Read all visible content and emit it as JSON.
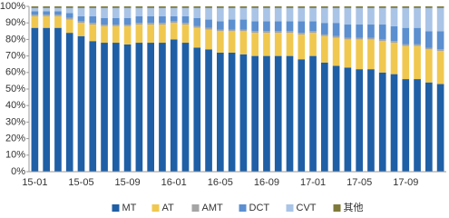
{
  "chart_data": {
    "type": "stacked_bar",
    "categories": [
      "15-01",
      null,
      null,
      null,
      "15-05",
      null,
      null,
      null,
      "15-09",
      null,
      null,
      null,
      "16-01",
      null,
      null,
      null,
      "16-05",
      null,
      null,
      null,
      "16-09",
      null,
      null,
      null,
      "17-01",
      null,
      null,
      null,
      "17-05",
      null,
      null,
      null,
      "17-09",
      null,
      null,
      null
    ],
    "series": [
      {
        "name": "MT",
        "color": "#1f5fa6",
        "values": [
          87,
          87,
          87,
          84,
          82,
          79,
          78,
          78,
          77,
          78,
          78,
          78,
          80,
          78,
          75,
          74,
          72,
          72,
          71,
          70,
          70,
          70,
          70,
          68,
          70,
          66,
          64,
          63,
          62,
          62,
          60,
          59,
          56,
          56,
          54,
          53
        ]
      },
      {
        "name": "AT",
        "color": "#f0c850",
        "values": [
          7,
          7,
          7,
          8,
          8,
          10,
          10,
          10,
          11,
          11,
          11,
          11,
          10,
          11,
          12,
          12,
          13,
          13,
          14,
          14,
          14,
          14,
          14,
          15,
          14,
          16,
          17,
          17,
          18,
          18,
          19,
          19,
          20,
          20,
          20,
          20
        ]
      },
      {
        "name": "AMT",
        "color": "#a5a5a5",
        "values": [
          1,
          1,
          1,
          1,
          1,
          1,
          1,
          1,
          1,
          1,
          1,
          1,
          1,
          1,
          1,
          1,
          1,
          1,
          1,
          1,
          1,
          1,
          1,
          1,
          1,
          1,
          1,
          1,
          1,
          1,
          1,
          1,
          1,
          1,
          1,
          1
        ]
      },
      {
        "name": "DCT",
        "color": "#5b8fd0",
        "values": [
          2,
          2,
          2,
          3,
          3,
          4,
          4,
          4,
          4,
          4,
          4,
          4,
          3,
          4,
          5,
          5,
          5,
          6,
          6,
          6,
          6,
          6,
          6,
          7,
          6,
          7,
          8,
          8,
          8,
          8,
          9,
          9,
          10,
          10,
          10,
          11
        ]
      },
      {
        "name": "CVT",
        "color": "#a9c4e6",
        "values": [
          2,
          2,
          2,
          3,
          5,
          5,
          6,
          6,
          6,
          5,
          5,
          5,
          5,
          5,
          6,
          7,
          8,
          7,
          7,
          8,
          8,
          8,
          8,
          8,
          8,
          9,
          9,
          10,
          10,
          10,
          10,
          11,
          12,
          12,
          14,
          14
        ]
      },
      {
        "name": "其他",
        "color": "#7f7a3a",
        "values": [
          1,
          1,
          1,
          1,
          1,
          1,
          1,
          1,
          1,
          1,
          1,
          1,
          1,
          1,
          1,
          1,
          1,
          1,
          1,
          1,
          1,
          1,
          1,
          1,
          1,
          1,
          1,
          1,
          1,
          1,
          1,
          1,
          1,
          1,
          1,
          1
        ]
      }
    ],
    "ylim": [
      0,
      100
    ],
    "yticks": [
      {
        "value": 0,
        "label": "0%"
      },
      {
        "value": 10,
        "label": "10%"
      },
      {
        "value": 20,
        "label": "20%"
      },
      {
        "value": 30,
        "label": "30%"
      },
      {
        "value": 40,
        "label": "40%"
      },
      {
        "value": 50,
        "label": "50%"
      },
      {
        "value": 60,
        "label": "60%"
      },
      {
        "value": 70,
        "label": "70%"
      },
      {
        "value": 80,
        "label": "80%"
      },
      {
        "value": 90,
        "label": "90%"
      },
      {
        "value": 100,
        "label": "100%"
      }
    ],
    "legend": "bottom"
  }
}
